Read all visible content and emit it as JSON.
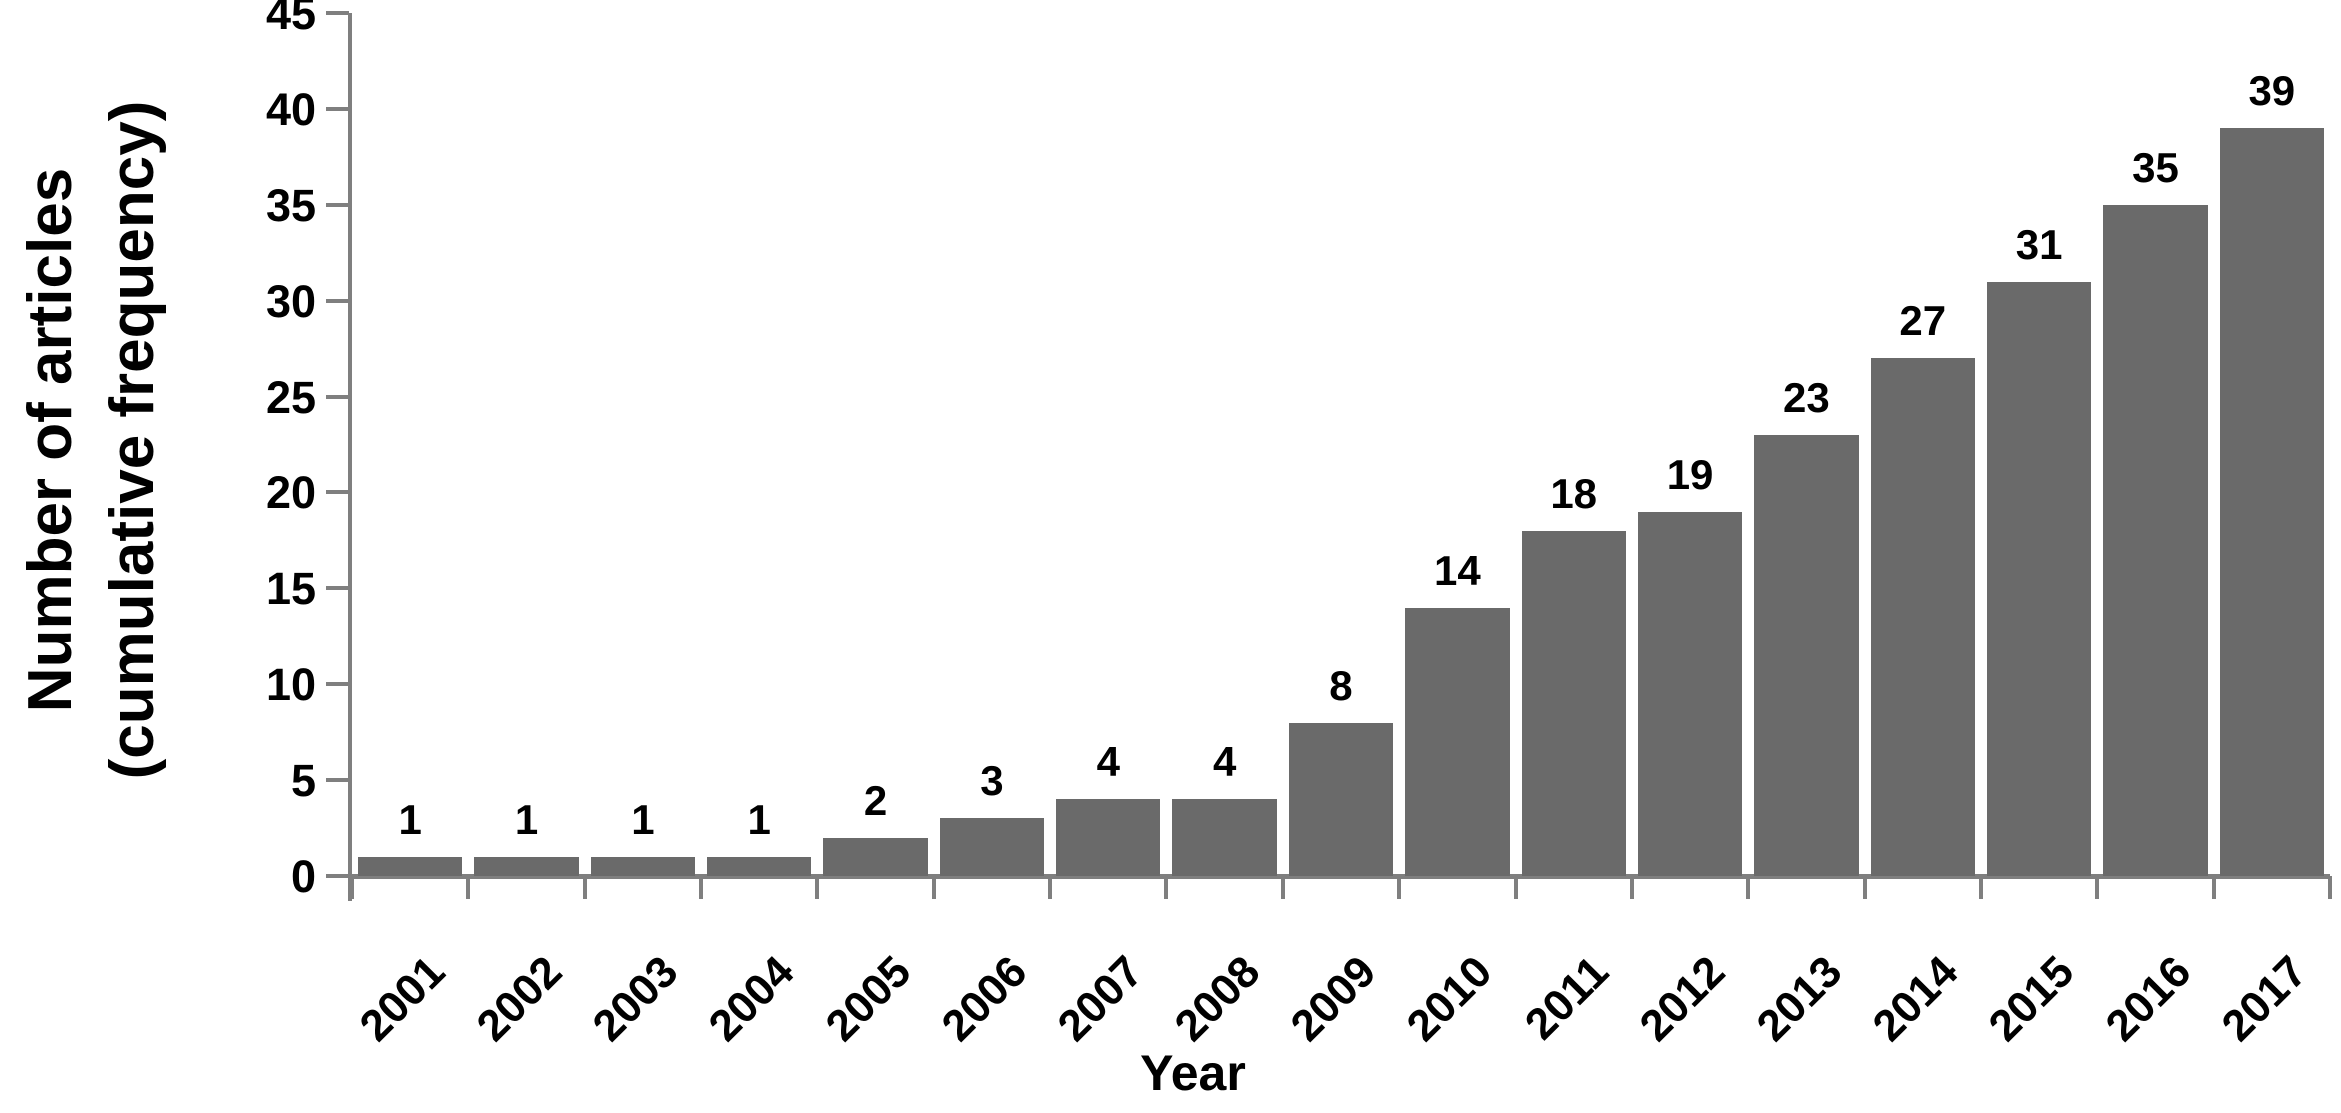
{
  "chart_data": {
    "type": "bar",
    "title": "",
    "xlabel": "Year",
    "ylabel": "Number of articles\n(cumulative frequency)",
    "categories": [
      "2001",
      "2002",
      "2003",
      "2004",
      "2005",
      "2006",
      "2007",
      "2008",
      "2009",
      "2010",
      "2011",
      "2012",
      "2013",
      "2014",
      "2015",
      "2016",
      "2017"
    ],
    "values": [
      1,
      1,
      1,
      1,
      2,
      3,
      4,
      4,
      8,
      14,
      18,
      19,
      23,
      27,
      31,
      35,
      39
    ],
    "value_labels_shown": true,
    "yticks": [
      0,
      5,
      10,
      15,
      20,
      25,
      30,
      35,
      40,
      45
    ],
    "ylim": [
      0,
      45
    ],
    "grid": "off",
    "legend": "none",
    "x_tick_label_rotation_deg": -45,
    "bar_color": "#6a6a6a",
    "axis_color": "#7f7f7f",
    "text_color": "#000000",
    "background": "#ffffff"
  }
}
